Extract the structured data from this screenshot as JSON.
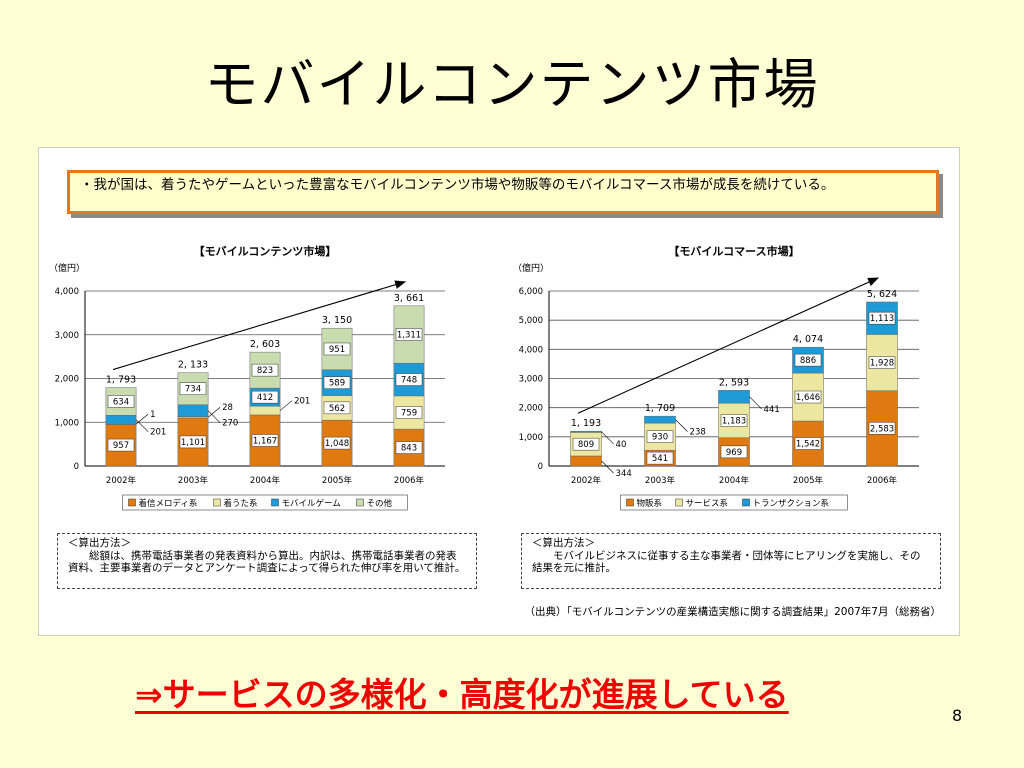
{
  "slide": {
    "title": "モバイルコンテンツ市場",
    "note": "・我が国は、着うたやゲームといった豊富なモバイルコンテンツ市場や物販等のモバイルコマース市場が成長を続けている。",
    "source": "（出典）「モバイルコンテンツの産業構造実態に関する調査結果」2007年7月（総務省）",
    "conclusion": "⇒サービスの多様化・高度化が進展している",
    "page_number": "8"
  },
  "methods": {
    "left": {
      "head": "＜算出方法＞",
      "text": "総額は、携帯電話事業者の発表資料から算出。内訳は、携帯電話事業者の発表資料、主要事業者のデータとアンケート調査によって得られた伸び率を用いて推計。"
    },
    "right": {
      "head": "＜算出方法＞",
      "text": "モバイルビジネスに従事する主な事業者・団体等にヒアリングを実施し、その結果を元に推計。"
    }
  },
  "chart_data": [
    {
      "type": "bar",
      "stacked": true,
      "title": "【モバイルコンテンツ市場】",
      "ylabel": "（億円）",
      "ylim": [
        0,
        4000
      ],
      "yticks": [
        "0",
        "1,000",
        "2,000",
        "3,000",
        "4,000"
      ],
      "ytick_values": [
        0,
        1000,
        2000,
        3000,
        4000
      ],
      "categories": [
        "2002年",
        "2003年",
        "2004年",
        "2005年",
        "2006年"
      ],
      "totals": [
        1793,
        2133,
        2603,
        3150,
        3661
      ],
      "total_labels": [
        "1, 793",
        "2, 133",
        "2, 603",
        "3, 150",
        "3, 661"
      ],
      "grid": true,
      "legend_position": "bottom",
      "trend_arrow": true,
      "series": [
        {
          "name": "着信メロディ系",
          "color": "#e07a10",
          "values": [
            957,
            1101,
            1167,
            1048,
            843
          ],
          "labels": [
            "957",
            "1,101",
            "1,167",
            "1,048",
            "843"
          ]
        },
        {
          "name": "着うた系",
          "color": "#ece7a0",
          "values": [
            1,
            28,
            201,
            562,
            759
          ],
          "labels": [
            "1",
            "28",
            "201",
            "562",
            "759"
          ]
        },
        {
          "name": "モバイルゲーム",
          "color": "#1e9ad6",
          "values": [
            201,
            270,
            412,
            589,
            748
          ],
          "labels": [
            "201",
            "270",
            "412",
            "589",
            "748"
          ]
        },
        {
          "name": "その他",
          "color": "#c8dcb0",
          "values": [
            634,
            734,
            823,
            951,
            1311
          ],
          "labels": [
            "634",
            "734",
            "823",
            "951",
            "1,311"
          ]
        }
      ]
    },
    {
      "type": "bar",
      "stacked": true,
      "title": "【モバイルコマース市場】",
      "ylabel": "（億円）",
      "ylim": [
        0,
        6000
      ],
      "yticks": [
        "0",
        "1,000",
        "2,000",
        "3,000",
        "4,000",
        "5,000",
        "6,000"
      ],
      "ytick_values": [
        0,
        1000,
        2000,
        3000,
        4000,
        5000,
        6000
      ],
      "categories": [
        "2002年",
        "2003年",
        "2004年",
        "2005年",
        "2006年"
      ],
      "totals": [
        1193,
        1709,
        2593,
        4074,
        5624
      ],
      "total_labels": [
        "1, 193",
        "1, 709",
        "2, 593",
        "4, 074",
        "5, 624"
      ],
      "grid": true,
      "legend_position": "bottom",
      "trend_arrow": true,
      "series": [
        {
          "name": "物販系",
          "color": "#e07a10",
          "values": [
            344,
            541,
            969,
            1542,
            2583
          ],
          "labels": [
            "344",
            "541",
            "969",
            "1,542",
            "2,583"
          ]
        },
        {
          "name": "サービス系",
          "color": "#ece7a0",
          "values": [
            809,
            930,
            1183,
            1646,
            1928
          ],
          "labels": [
            "809",
            "930",
            "1,183",
            "1,646",
            "1,928"
          ]
        },
        {
          "name": "トランザクション系",
          "color": "#1e9ad6",
          "values": [
            40,
            238,
            441,
            886,
            1113
          ],
          "labels": [
            "40",
            "238",
            "441",
            "886",
            "1,113"
          ]
        }
      ]
    }
  ]
}
